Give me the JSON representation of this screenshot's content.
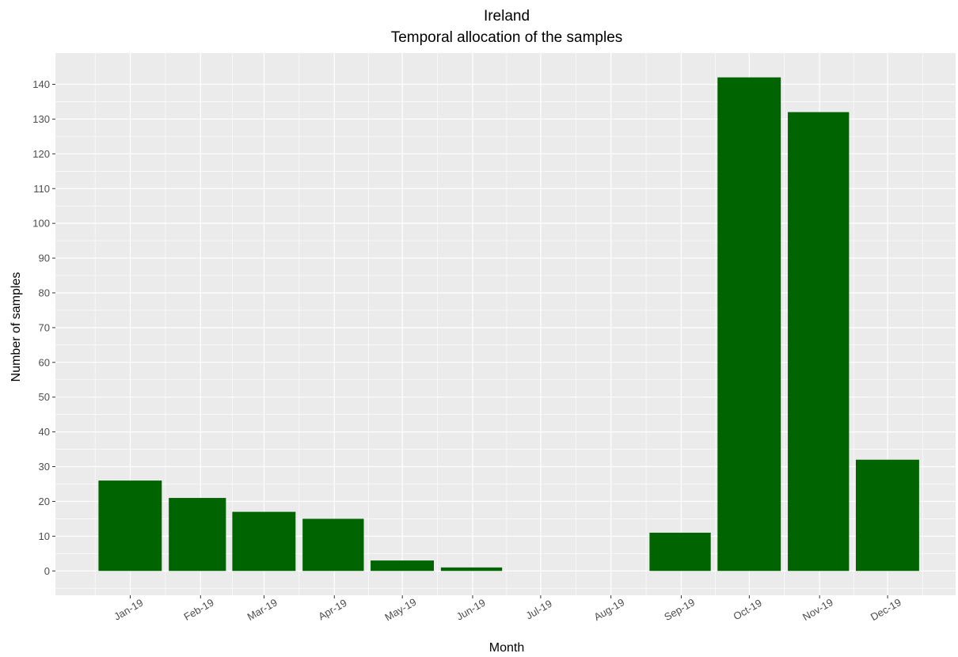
{
  "chart_data": {
    "type": "bar",
    "title": "Ireland",
    "subtitle": "Temporal allocation of the samples",
    "xlabel": "Month",
    "ylabel": "Number of samples",
    "categories": [
      "Jan-19",
      "Feb-19",
      "Mar-19",
      "Apr-19",
      "May-19",
      "Jun-19",
      "Jul-19",
      "Aug-19",
      "Sep-19",
      "Oct-19",
      "Nov-19",
      "Dec-19"
    ],
    "dates": [
      "2019-01-15",
      "2019-02-15",
      "2019-03-15",
      "2019-04-15",
      "2019-05-15",
      "2019-06-15",
      "2019-07-15",
      "2019-08-15",
      "2019-09-15",
      "2019-10-15",
      "2019-11-15",
      "2019-12-15"
    ],
    "bar_start_dates": [
      "2019-01-01",
      "2019-02-01",
      "2019-03-01",
      "2019-04-01",
      "2019-05-01",
      "2019-06-01",
      "2019-07-01",
      "2019-08-01",
      "2019-09-01",
      "2019-10-01",
      "2019-11-01",
      "2019-12-01"
    ],
    "values": [
      26,
      21,
      17,
      15,
      3,
      1,
      0,
      0,
      11,
      142,
      132,
      32
    ],
    "xlim": [
      "2018-12-13",
      "2020-01-14"
    ],
    "ylim": [
      -7,
      149
    ],
    "yticks": [
      0,
      10,
      20,
      30,
      40,
      50,
      60,
      70,
      80,
      90,
      100,
      110,
      120,
      130,
      140
    ],
    "grid": true,
    "legend": "none",
    "colors": {
      "bar": "#006400",
      "panel": "#ebebeb",
      "grid": "#ffffff"
    }
  }
}
